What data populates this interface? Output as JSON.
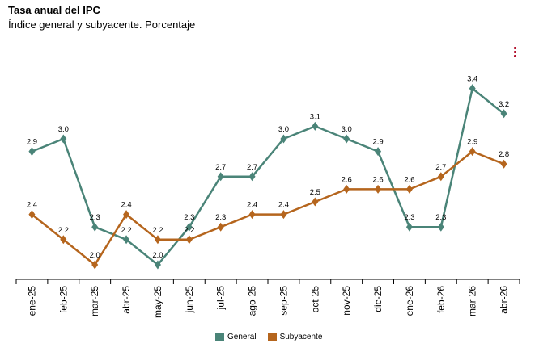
{
  "title": "Tasa anual del IPC",
  "subtitle": "Índice general y subyacente. Porcentaje",
  "colors": {
    "General": "#4a8478",
    "Subyacente": "#b5651d"
  },
  "legend": {
    "general_label": "General",
    "subyacente_label": "Subyacente"
  },
  "menu": {
    "icon": "vertical-dots-icon"
  },
  "chart_data": {
    "type": "line",
    "title": "Tasa anual del IPC",
    "subtitle": "Índice general y subyacente. Porcentaje",
    "xlabel": "",
    "ylabel": "",
    "categories": [
      "ene-25",
      "feb-25",
      "mar-25",
      "abr-25",
      "may-25",
      "jun-25",
      "jul-25",
      "ago-25",
      "sep-25",
      "oct-25",
      "nov-25",
      "dic-25",
      "ene-26",
      "feb-26",
      "mar-26",
      "abr-26"
    ],
    "ylim": [
      1.7,
      3.55
    ],
    "grid": false,
    "legend_position": "bottom",
    "series": [
      {
        "name": "General",
        "values": [
          2.9,
          3.0,
          2.3,
          2.2,
          2.0,
          2.3,
          2.7,
          2.7,
          3.0,
          3.1,
          3.0,
          2.9,
          2.3,
          2.3,
          3.4,
          3.2
        ]
      },
      {
        "name": "Subyacente",
        "values": [
          2.4,
          2.2,
          2.0,
          2.4,
          2.2,
          2.2,
          2.3,
          2.4,
          2.4,
          2.5,
          2.6,
          2.6,
          2.6,
          2.7,
          2.9,
          2.8
        ]
      }
    ]
  }
}
